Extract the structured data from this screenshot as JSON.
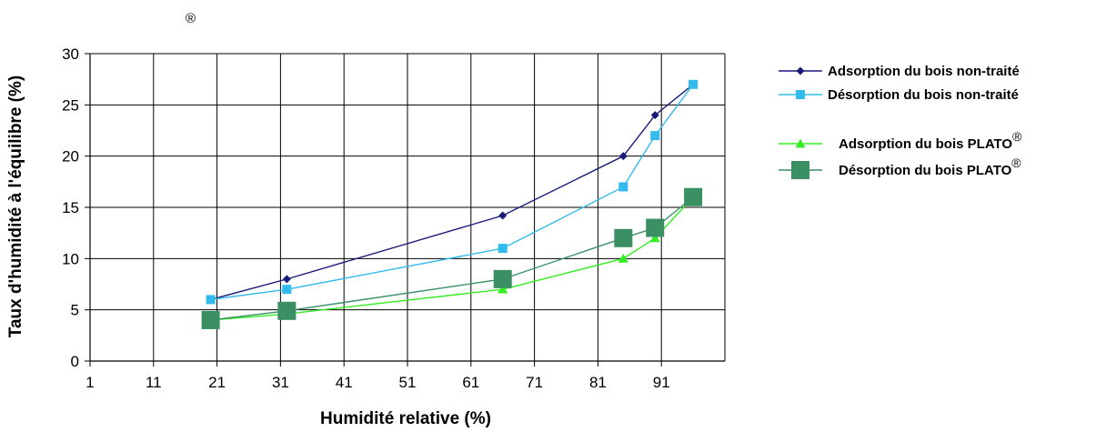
{
  "chart_data": {
    "type": "line",
    "title": "",
    "top_mark": "®",
    "xlabel": "Humidité relative (%)",
    "ylabel": "Taux d'humidité à l'équilibre (%)",
    "xlim": [
      1,
      101
    ],
    "ylim": [
      0,
      30
    ],
    "x_ticks": [
      1,
      11,
      21,
      31,
      41,
      51,
      61,
      71,
      81,
      91
    ],
    "x_tick_labels": [
      "1",
      "11",
      "21",
      "31",
      "41",
      "51",
      "61",
      "71",
      "81",
      "91"
    ],
    "y_ticks": [
      0,
      5,
      10,
      15,
      20,
      25,
      30
    ],
    "y_tick_labels": [
      "0",
      "5",
      "10",
      "15",
      "20",
      "25",
      "30"
    ],
    "grid": true,
    "legend_position": "right",
    "series": [
      {
        "name": "Adsorption du bois non-traité",
        "name_suffix": "",
        "color": "#1a1a7a",
        "marker": "diamond",
        "points": [
          [
            20,
            6
          ],
          [
            32,
            8
          ],
          [
            66,
            14.2
          ],
          [
            85,
            20
          ],
          [
            90,
            24
          ],
          [
            96,
            27
          ]
        ]
      },
      {
        "name": "Désorption du bois non-traité",
        "name_suffix": "",
        "color": "#33bbee",
        "marker": "square",
        "points": [
          [
            20,
            6
          ],
          [
            32,
            7
          ],
          [
            66,
            11
          ],
          [
            85,
            17
          ],
          [
            90,
            22
          ],
          [
            96,
            27
          ]
        ]
      },
      {
        "name": "Adsorption du bois PLATO",
        "name_suffix": "®",
        "color": "#33ee22",
        "marker": "triangle",
        "points": [
          [
            20,
            4
          ],
          [
            32,
            4.6
          ],
          [
            66,
            7
          ],
          [
            85,
            10
          ],
          [
            90,
            12
          ],
          [
            96,
            16
          ]
        ]
      },
      {
        "name": "Désorption du bois PLATO",
        "name_suffix": "®",
        "color": "#3a8f63",
        "marker": "bigsquare",
        "points": [
          [
            20,
            4
          ],
          [
            32,
            4.9
          ],
          [
            66,
            8
          ],
          [
            85,
            12
          ],
          [
            90,
            13
          ],
          [
            96,
            16
          ]
        ]
      }
    ]
  }
}
